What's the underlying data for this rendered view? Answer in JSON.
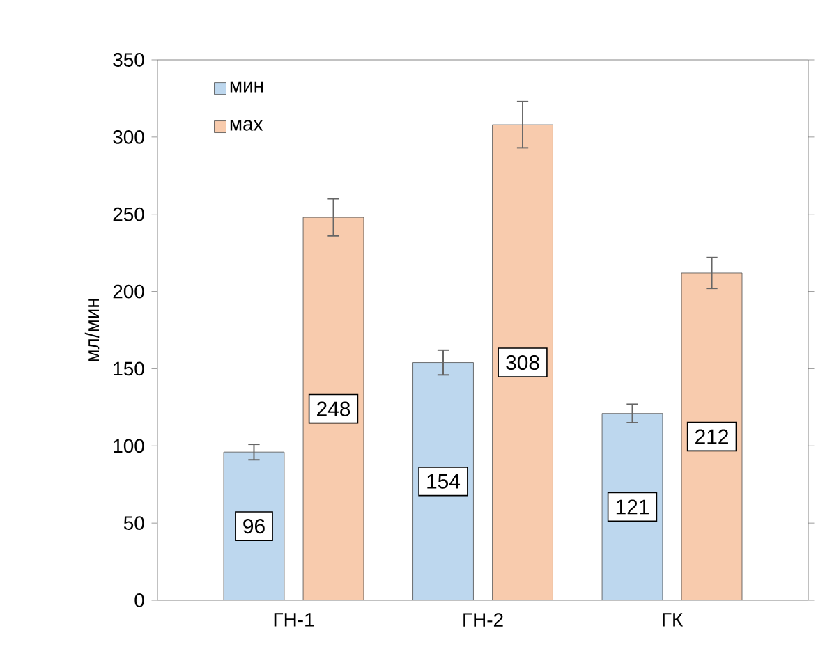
{
  "chart_data": {
    "type": "bar",
    "ylabel": "мл/мин",
    "categories": [
      "ГН-1",
      "ГН-2",
      "ГК"
    ],
    "series": [
      {
        "name": "мин",
        "color": "#bdd7ee",
        "values": [
          96,
          154,
          121
        ],
        "errors": [
          5,
          8,
          6
        ]
      },
      {
        "name": "мах",
        "color": "#f8cbad",
        "values": [
          248,
          308,
          212
        ],
        "errors": [
          12,
          15,
          10
        ]
      }
    ],
    "ylim": [
      0,
      350
    ],
    "yticks": [
      0,
      50,
      100,
      150,
      200,
      250,
      300,
      350
    ],
    "data_labels": true,
    "legend": "top left",
    "grid": false
  }
}
